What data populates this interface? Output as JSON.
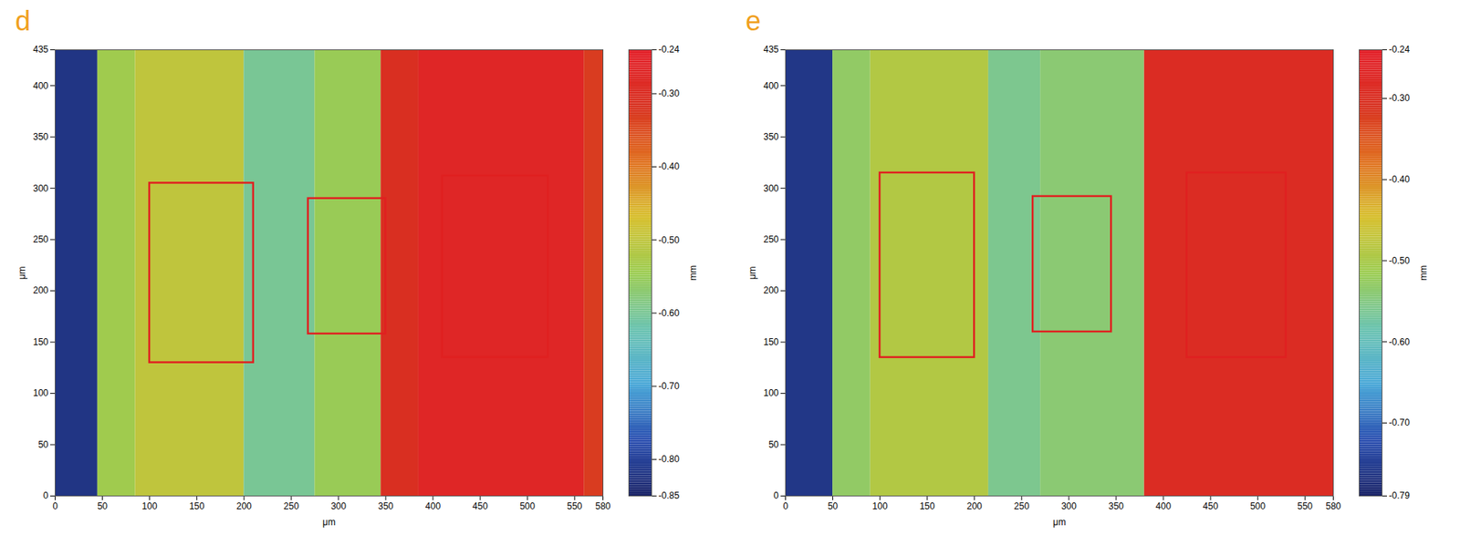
{
  "chart_data": [
    {
      "type": "heatmap",
      "panel": "d",
      "xlabel": "μm",
      "ylabel": "μm",
      "xlim": [
        0,
        580
      ],
      "xticks": [
        0,
        50,
        100,
        150,
        200,
        250,
        300,
        350,
        400,
        450,
        500,
        550,
        580
      ],
      "ylim": [
        0,
        435
      ],
      "yticks": [
        0,
        50,
        100,
        150,
        200,
        250,
        300,
        350,
        400,
        435
      ],
      "cells": [
        {
          "x0": 0,
          "x1": 45,
          "y0": 0,
          "y1": 435,
          "value": -0.82
        },
        {
          "x0": 45,
          "x1": 85,
          "y0": 0,
          "y1": 435,
          "value": -0.54
        },
        {
          "x0": 85,
          "x1": 200,
          "y0": 0,
          "y1": 435,
          "value": -0.5
        },
        {
          "x0": 200,
          "x1": 275,
          "y0": 0,
          "y1": 435,
          "value": -0.6
        },
        {
          "x0": 275,
          "x1": 345,
          "y0": 0,
          "y1": 435,
          "value": -0.55
        },
        {
          "x0": 345,
          "x1": 385,
          "y0": 0,
          "y1": 435,
          "value": -0.31
        },
        {
          "x0": 385,
          "x1": 560,
          "y0": 0,
          "y1": 435,
          "value": -0.27
        },
        {
          "x0": 560,
          "x1": 580,
          "y0": 0,
          "y1": 435,
          "value": -0.33
        }
      ],
      "regions": [
        {
          "x0": 100,
          "x1": 210,
          "y0": 130,
          "y1": 305
        },
        {
          "x0": 268,
          "x1": 350,
          "y0": 158,
          "y1": 290
        },
        {
          "x0": 410,
          "x1": 522,
          "y0": 135,
          "y1": 312
        }
      ],
      "colorbar": {
        "label": "mm",
        "range": [
          -0.85,
          -0.24
        ],
        "ticks": [
          -0.24,
          {
            "value": -0.3,
            "label": "-0.30"
          },
          {
            "value": -0.4,
            "label": "-0.40"
          },
          {
            "value": -0.5,
            "label": "-0.50"
          },
          {
            "value": -0.6,
            "label": "-0.60"
          },
          {
            "value": -0.7,
            "label": "-0.70"
          },
          {
            "value": -0.8,
            "label": "-0.80"
          },
          -0.85
        ]
      }
    },
    {
      "type": "heatmap",
      "panel": "e",
      "xlabel": "μm",
      "ylabel": "μm",
      "xlim": [
        0,
        580
      ],
      "xticks": [
        0,
        50,
        100,
        150,
        200,
        250,
        300,
        350,
        400,
        450,
        500,
        550,
        580
      ],
      "ylim": [
        0,
        435
      ],
      "yticks": [
        0,
        50,
        100,
        150,
        200,
        250,
        300,
        350,
        400,
        435
      ],
      "cells": [
        {
          "x0": 0,
          "x1": 50,
          "y0": 0,
          "y1": 435,
          "value": -0.76
        },
        {
          "x0": 50,
          "x1": 90,
          "y0": 0,
          "y1": 435,
          "value": -0.53
        },
        {
          "x0": 90,
          "x1": 215,
          "y0": 0,
          "y1": 435,
          "value": -0.49
        },
        {
          "x0": 215,
          "x1": 270,
          "y0": 0,
          "y1": 435,
          "value": -0.56
        },
        {
          "x0": 270,
          "x1": 380,
          "y0": 0,
          "y1": 435,
          "value": -0.54
        },
        {
          "x0": 380,
          "x1": 580,
          "y0": 0,
          "y1": 435,
          "value": -0.29
        }
      ],
      "regions": [
        {
          "x0": 100,
          "x1": 200,
          "y0": 135,
          "y1": 315
        },
        {
          "x0": 262,
          "x1": 345,
          "y0": 160,
          "y1": 292
        },
        {
          "x0": 425,
          "x1": 530,
          "y0": 135,
          "y1": 315
        }
      ],
      "colorbar": {
        "label": "mm",
        "range": [
          -0.79,
          -0.24
        ],
        "ticks": [
          -0.24,
          {
            "value": -0.3,
            "label": "-0.30"
          },
          {
            "value": -0.4,
            "label": "-0.40"
          },
          {
            "value": -0.5,
            "label": "-0.50"
          },
          {
            "value": -0.6,
            "label": "-0.60"
          },
          {
            "value": -0.7,
            "label": "-0.70"
          },
          -0.79
        ]
      }
    }
  ]
}
